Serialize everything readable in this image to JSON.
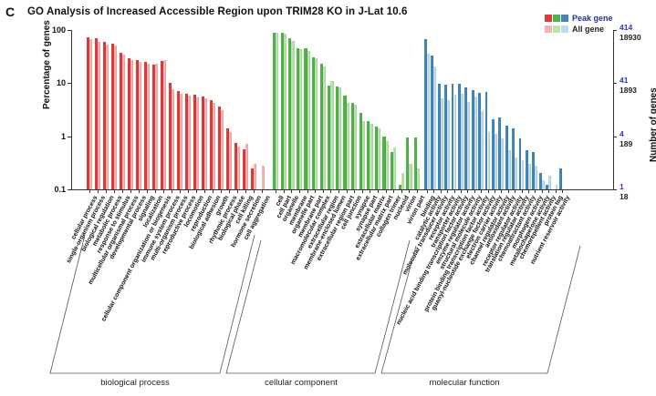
{
  "panel_label": "C",
  "title": "GO Analysis of Increased Accessible Region upon TRIM28 KO in J-Lat 10.6",
  "legend": {
    "peak_label": "Peak gene",
    "all_label": "All gene",
    "peak_colors": [
      "#e03a3a",
      "#4fb44a",
      "#3f87bd"
    ],
    "all_colors": [
      "#f6b2b2",
      "#bce3ae",
      "#bfdcec"
    ]
  },
  "axes": {
    "left_label": "Percentage of genes",
    "right_label": "Number of genes",
    "left_ticks": [
      "100",
      "10",
      "1",
      "0.1"
    ],
    "right_ticks_blue": [
      "414",
      "41",
      "4",
      "1"
    ],
    "right_ticks_black": [
      "18930",
      "1893",
      "189",
      "18"
    ],
    "scale": "log",
    "ymin": 0.1,
    "ymax": 100
  },
  "chart_data": {
    "type": "bar",
    "title": "GO Analysis of Increased Accessible Region upon TRIM28 KO in J-Lat 10.6",
    "ylabel": "Percentage of genes",
    "ylabel_right": "Number of genes",
    "yscale": "log",
    "ylim": [
      0.1,
      100
    ],
    "series_names": [
      "Peak gene",
      "All gene"
    ],
    "groups": [
      {
        "name": "biological process",
        "peak_color": "#e03a3a",
        "all_color": "#f6b2b2",
        "categories": [
          "cellular process",
          "single-organism process",
          "biological regulation",
          "metabolic process",
          "response to stimulus",
          "multicellular organismal process",
          "developmental process",
          "signaling",
          "localization",
          "cellular component organization or biogenesis",
          "immune system process",
          "multi-organism process",
          "reproductive process",
          "locomotion",
          "reproduction",
          "biological adhesion",
          "growth",
          "rhythmic process",
          "biological phase",
          "cell killing",
          "hormone secretion",
          "cell aggregation"
        ],
        "peak_values": [
          72,
          69,
          61,
          56,
          38,
          29,
          27,
          25,
          22,
          26,
          10.2,
          7.1,
          6.2,
          6.0,
          5.6,
          4.8,
          3.6,
          1.4,
          0.75,
          0.58,
          0.25,
          0.1
        ],
        "all_values": [
          68,
          61,
          54,
          51,
          34,
          27,
          25,
          23,
          23,
          27,
          7.8,
          6.3,
          5.8,
          5.4,
          5.2,
          4.3,
          3.1,
          1.2,
          0.63,
          0.72,
          0.3,
          0.28
        ]
      },
      {
        "name": "cellular component",
        "peak_color": "#4fb44a",
        "all_color": "#bce3ae",
        "categories": [
          "cell",
          "cell part",
          "organelle",
          "membrane",
          "organelle part",
          "membrane part",
          "macromolecular complex",
          "extracellular region",
          "membrane-enclosed lumen",
          "extracellular region part",
          "cell junction",
          "synapse",
          "synapse part",
          "extracellular matrix",
          "extracellular matrix part",
          "collagen trimer",
          "nucleoid",
          "virion",
          "virion part"
        ],
        "peak_values": [
          90,
          89,
          70,
          46,
          45,
          31,
          23,
          9,
          8.7,
          5.8,
          4.2,
          2.8,
          1.9,
          1.5,
          1.0,
          0.5,
          0.12,
          0.95,
          0.95
        ],
        "all_values": [
          88,
          86,
          62,
          44,
          40,
          29,
          21,
          11,
          8.2,
          4.2,
          4.0,
          1.9,
          1.7,
          1.4,
          0.8,
          0.62,
          0.2,
          0.3,
          0.25
        ]
      },
      {
        "name": "molecular function",
        "peak_color": "#3f87bd",
        "all_color": "#bfdcec",
        "categories": [
          "binding",
          "catalytic activity",
          "molecular transducer activity",
          "receptor activity",
          "transporter activity",
          "nucleic acid binding transcription factor activity",
          "enzyme regulator activity",
          "structural molecule activity",
          "protein binding transcription factor activity",
          "guanyl-nucleotide exchange factor activity",
          "electron carrier activity",
          "channel regulator activity",
          "antioxidant activity",
          "receptor regulator activity",
          "translation regulator activity",
          "chemoattractant activity",
          "morphogen activity",
          "metallochaperone activity",
          "chemorepellent activity",
          "protein tag",
          "nutrient reservoir activity"
        ],
        "peak_values": [
          67,
          33,
          9.9,
          9.5,
          9.7,
          9.9,
          8.2,
          7.5,
          6.5,
          6.8,
          2.1,
          2.3,
          1.6,
          1.4,
          0.9,
          0.55,
          0.5,
          0.2,
          0.12,
          0.1,
          0.25
        ],
        "all_values": [
          36,
          21,
          5.2,
          4.8,
          6.0,
          6.2,
          4.4,
          5.6,
          3.0,
          1.2,
          1.1,
          0.9,
          0.55,
          0.4,
          0.35,
          0.3,
          0.28,
          0.15,
          0.18,
          0.12,
          0.1
        ]
      }
    ]
  }
}
